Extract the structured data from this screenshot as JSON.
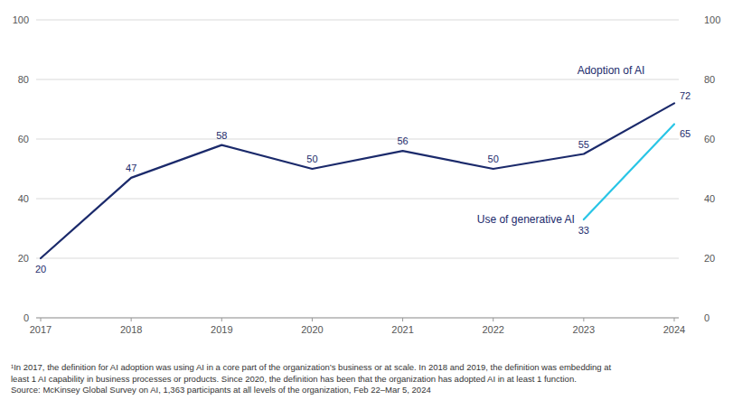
{
  "chart_data": {
    "type": "line",
    "series": [
      {
        "name": "Adoption of AI",
        "color": "#1b2a6b",
        "x": [
          2017,
          2018,
          2019,
          2020,
          2021,
          2022,
          2023,
          2024
        ],
        "values": [
          20,
          47,
          58,
          50,
          56,
          50,
          55,
          72
        ]
      },
      {
        "name": "Use of generative AI",
        "color": "#29c5e6",
        "x": [
          2023,
          2024
        ],
        "values": [
          33,
          65
        ]
      }
    ],
    "xlim": [
      2016.95,
      2024.05
    ],
    "xticks": [
      2017,
      2018,
      2019,
      2020,
      2021,
      2022,
      2023,
      2024
    ],
    "ylim": [
      0,
      100
    ],
    "yticks": [
      0,
      20,
      40,
      60,
      80,
      100
    ],
    "grid": true,
    "data_labels": true,
    "annotations": [
      "¹In 2017, the definition for AI adoption was using AI in a core part of the organization’s business or at scale. In 2018 and 2019, the definition was embedding at",
      "least 1 AI capability in business processes or products. Since 2020, the definition has been that the organization has adopted AI in at least 1 function.",
      "Source: McKinsey Global Survey on AI, 1,363 participants at all levels of the organization, Feb 22–Mar 5, 2024"
    ]
  }
}
